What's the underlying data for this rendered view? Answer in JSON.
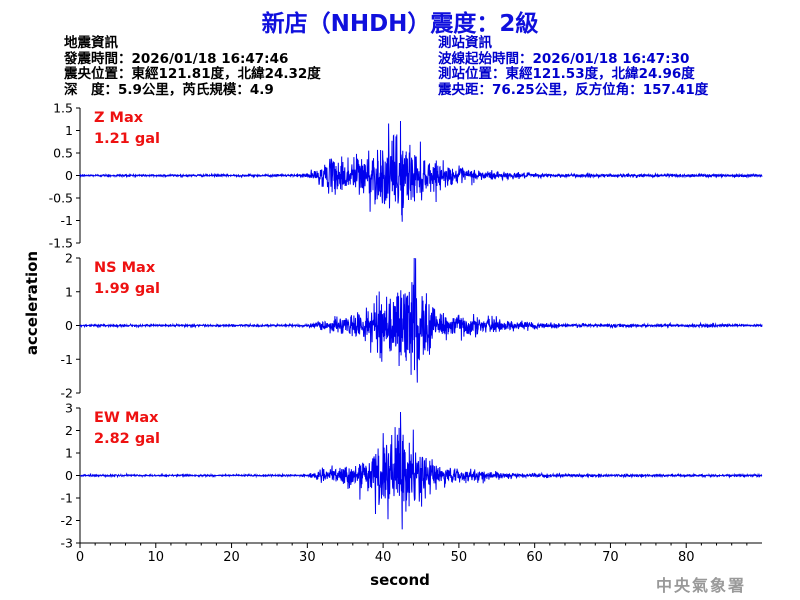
{
  "title": "新店（NHDH）震度：2級",
  "quake_info": {
    "heading": "地震資訊",
    "time": "發震時間：2026/01/18 16:47:46",
    "location": "震央位置：東經121.81度，北緯24.32度",
    "depth_mag": "深　度：5.9公里，芮氏規模：4.9"
  },
  "station_info": {
    "heading": "測站資訊",
    "wave_start": "波線起始時間：2026/01/18 16:47:30",
    "location": "測站位置：東經121.53度，北緯24.96度",
    "distance": "震央距：76.25公里，反方位角：157.41度"
  },
  "watermark": "中央氣象署",
  "colors": {
    "trace": "#0000ee",
    "max_label": "#ee1111",
    "title": "#1010dd",
    "station_info": "#0000cc"
  },
  "chart_data": {
    "type": "line",
    "xlabel": "second",
    "ylabel": "acceleration",
    "xlim": [
      0,
      90
    ],
    "xticks": [
      0,
      10,
      20,
      30,
      40,
      50,
      60,
      70,
      80
    ],
    "panels": [
      {
        "name": "Z",
        "max_label": "Z Max",
        "max_value": "1.21 gal",
        "ylim": [
          -1.5,
          1.5
        ],
        "yticks": [
          1.5,
          1,
          0.5,
          0,
          -0.5,
          -1,
          -1.5
        ],
        "ytick_labels": [
          "1.5",
          "1",
          "0.5",
          "0",
          "-0.5",
          "-1",
          "-1.5"
        ],
        "envelope": [
          [
            0,
            0.03
          ],
          [
            29,
            0.03
          ],
          [
            31,
            0.15
          ],
          [
            33,
            0.45
          ],
          [
            36,
            0.6
          ],
          [
            38,
            0.75
          ],
          [
            40,
            0.9
          ],
          [
            42,
            1.21
          ],
          [
            44,
            0.8
          ],
          [
            46,
            0.5
          ],
          [
            48,
            0.3
          ],
          [
            52,
            0.18
          ],
          [
            58,
            0.08
          ],
          [
            62,
            0.05
          ],
          [
            90,
            0.04
          ]
        ]
      },
      {
        "name": "NS",
        "max_label": "NS Max",
        "max_value": "1.99 gal",
        "ylim": [
          -2,
          2
        ],
        "yticks": [
          2,
          1,
          0,
          -1,
          -2
        ],
        "ytick_labels": [
          "2",
          "1",
          "0",
          "-1",
          "-2"
        ],
        "envelope": [
          [
            0,
            0.04
          ],
          [
            30,
            0.04
          ],
          [
            32,
            0.2
          ],
          [
            35,
            0.35
          ],
          [
            38,
            0.6
          ],
          [
            40,
            1.2
          ],
          [
            42,
            1.5
          ],
          [
            44,
            1.99
          ],
          [
            46,
            1.0
          ],
          [
            48,
            0.6
          ],
          [
            51,
            0.4
          ],
          [
            55,
            0.25
          ],
          [
            60,
            0.12
          ],
          [
            65,
            0.07
          ],
          [
            90,
            0.05
          ]
        ]
      },
      {
        "name": "EW",
        "max_label": "EW Max",
        "max_value": "2.82 gal",
        "ylim": [
          -3,
          3
        ],
        "yticks": [
          3,
          2,
          1,
          0,
          -1,
          -2,
          -3
        ],
        "ytick_labels": [
          "3",
          "2",
          "1",
          "0",
          "-1",
          "-2",
          "-3"
        ],
        "envelope": [
          [
            0,
            0.05
          ],
          [
            30,
            0.05
          ],
          [
            32,
            0.35
          ],
          [
            35,
            0.5
          ],
          [
            38,
            1.0
          ],
          [
            40,
            2.0
          ],
          [
            42,
            2.82
          ],
          [
            44,
            1.8
          ],
          [
            46,
            1.0
          ],
          [
            48,
            0.55
          ],
          [
            51,
            0.35
          ],
          [
            55,
            0.2
          ],
          [
            60,
            0.1
          ],
          [
            65,
            0.07
          ],
          [
            90,
            0.06
          ]
        ]
      }
    ]
  }
}
